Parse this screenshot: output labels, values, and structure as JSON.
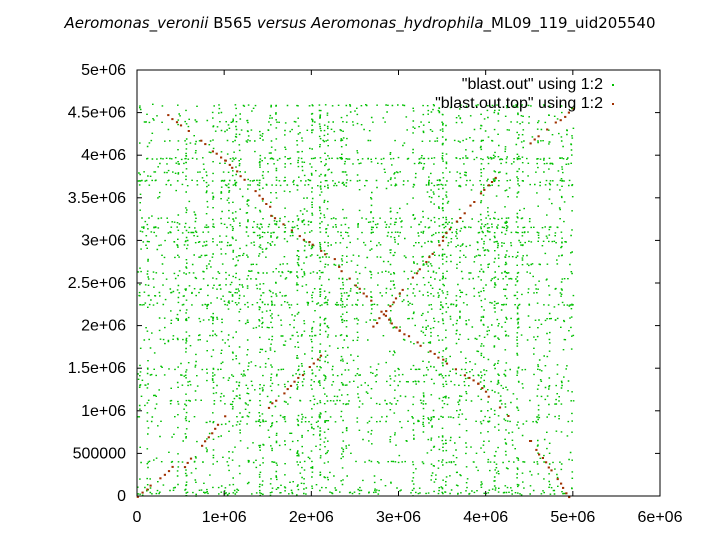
{
  "title": {
    "part1": "Aeromonas_veronii",
    "part2": " B565 ",
    "part3": " versus ",
    "part4": " Aeromonas_hydrophila",
    "part5": "_ML09_119_uid205540"
  },
  "chart_data": {
    "type": "scatter",
    "xlim": [
      0,
      6000000
    ],
    "ylim": [
      0,
      5000000
    ],
    "x_ticks": [
      {
        "value": 0,
        "label": "0"
      },
      {
        "value": 1000000,
        "label": "1e+06"
      },
      {
        "value": 2000000,
        "label": "2e+06"
      },
      {
        "value": 3000000,
        "label": "3e+06"
      },
      {
        "value": 4000000,
        "label": "4e+06"
      },
      {
        "value": 5000000,
        "label": "5e+06"
      },
      {
        "value": 6000000,
        "label": "6e+06"
      }
    ],
    "y_ticks": [
      {
        "value": 0,
        "label": "0"
      },
      {
        "value": 500000,
        "label": "500000"
      },
      {
        "value": 1000000,
        "label": "1e+06"
      },
      {
        "value": 1500000,
        "label": "1.5e+06"
      },
      {
        "value": 2000000,
        "label": "2e+06"
      },
      {
        "value": 2500000,
        "label": "2.5e+06"
      },
      {
        "value": 3000000,
        "label": "3e+06"
      },
      {
        "value": 3500000,
        "label": "3.5e+06"
      },
      {
        "value": 4000000,
        "label": "4e+06"
      },
      {
        "value": 4500000,
        "label": "4.5e+06"
      },
      {
        "value": 5000000,
        "label": "5e+06"
      }
    ],
    "legend_position": "top-right",
    "grid": false,
    "series": [
      {
        "name": "\"blast.out\" using 1:2",
        "color": "#00c000",
        "style": "points",
        "x_range": [
          0,
          5000000
        ],
        "y_range": [
          0,
          4600000
        ]
      },
      {
        "name": "\"blast.out.top\" using 1:2",
        "color": "#a03000",
        "style": "points",
        "segments": [
          {
            "x": [
              0,
              400000
            ],
            "y": [
              0,
              350000
            ]
          },
          {
            "x": [
              300000,
              1000000
            ],
            "y": [
              4520000,
              3950000
            ]
          },
          {
            "x": [
              1000000,
              1520000
            ],
            "y": [
              3950000,
              3400000
            ]
          },
          {
            "x": [
              1520000,
              2300000
            ],
            "y": [
              3300000,
              2750000
            ]
          },
          {
            "x": [
              2300000,
              3000000
            ],
            "y": [
              2700000,
              1950000
            ]
          },
          {
            "x": [
              3000000,
              3900000
            ],
            "y": [
              1950000,
              1330000
            ]
          },
          {
            "x": [
              3900000,
              4500000
            ],
            "y": [
              1330000,
              660000
            ]
          },
          {
            "x": [
              4500000,
              4950000
            ],
            "y": [
              660000,
              0
            ]
          },
          {
            "x": [
              500000,
              1000000
            ],
            "y": [
              300000,
              950000
            ]
          },
          {
            "x": [
              1500000,
              2100000
            ],
            "y": [
              1050000,
              1650000
            ]
          },
          {
            "x": [
              2700000,
              3500000
            ],
            "y": [
              2000000,
              3000000
            ]
          },
          {
            "x": [
              3500000,
              4100000
            ],
            "y": [
              3050000,
              3750000
            ]
          },
          {
            "x": [
              4500000,
              5000000
            ],
            "y": [
              4150000,
              4550000
            ]
          }
        ]
      }
    ]
  }
}
